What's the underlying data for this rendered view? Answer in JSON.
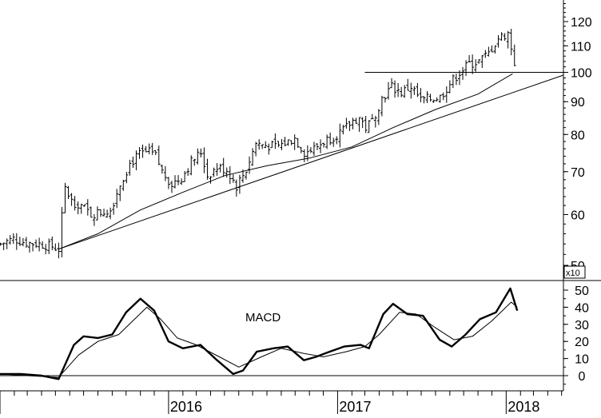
{
  "chart_data": [
    {
      "type": "ohlc",
      "title": "",
      "scale": "log",
      "ylim": [
        47,
        132
      ],
      "y_ticks": [
        "50",
        "60",
        "70",
        "80",
        "90",
        "100",
        "110",
        "120"
      ],
      "y_tick_values": [
        50,
        60,
        70,
        80,
        90,
        100,
        110,
        120
      ],
      "x_ticks": [
        "2016",
        "2017",
        "2018"
      ],
      "xlim": [
        "2015-01-01",
        "2018-05-05"
      ],
      "x_tick_dates": [
        "2016-01-01",
        "2017-01-01",
        "2018-01-01"
      ],
      "weekly_close": [
        [
          "2015-01-02",
          54
        ],
        [
          "2015-01-30",
          55
        ],
        [
          "2015-02-27",
          54.2
        ],
        [
          "2015-03-27",
          54
        ],
        [
          "2015-04-24",
          53.5
        ],
        [
          "2015-05-08",
          53
        ],
        [
          "2015-05-22",
          66
        ],
        [
          "2015-06-05",
          63
        ],
        [
          "2015-06-26",
          62
        ],
        [
          "2015-07-17",
          60
        ],
        [
          "2015-08-07",
          60.5
        ],
        [
          "2015-08-28",
          61
        ],
        [
          "2015-09-18",
          67
        ],
        [
          "2015-10-09",
          72
        ],
        [
          "2015-10-30",
          74.5
        ],
        [
          "2015-11-20",
          75
        ],
        [
          "2015-12-04",
          74
        ],
        [
          "2015-12-18",
          70
        ],
        [
          "2016-01-08",
          67
        ],
        [
          "2016-01-29",
          68.5
        ],
        [
          "2016-02-19",
          72.5
        ],
        [
          "2016-03-11",
          75
        ],
        [
          "2016-03-25",
          69
        ],
        [
          "2016-04-15",
          71
        ],
        [
          "2016-05-06",
          70.5
        ],
        [
          "2016-05-27",
          66.5
        ],
        [
          "2016-06-17",
          70.5
        ],
        [
          "2016-07-08",
          77.5
        ],
        [
          "2016-07-29",
          77
        ],
        [
          "2016-08-19",
          76.5
        ],
        [
          "2016-09-09",
          77.5
        ],
        [
          "2016-09-30",
          79
        ],
        [
          "2016-10-21",
          75
        ],
        [
          "2016-11-11",
          76
        ],
        [
          "2016-12-02",
          78
        ],
        [
          "2016-12-23",
          79.5
        ],
        [
          "2017-01-13",
          81
        ],
        [
          "2017-02-03",
          84
        ],
        [
          "2017-02-17",
          85
        ],
        [
          "2017-03-03",
          82
        ],
        [
          "2017-03-17",
          84
        ],
        [
          "2017-04-07",
          91
        ],
        [
          "2017-04-28",
          95
        ],
        [
          "2017-05-19",
          93
        ],
        [
          "2017-06-09",
          95
        ],
        [
          "2017-06-30",
          90.5
        ],
        [
          "2017-07-21",
          91
        ],
        [
          "2017-08-11",
          91.5
        ],
        [
          "2017-09-01",
          96
        ],
        [
          "2017-09-22",
          100
        ],
        [
          "2017-10-13",
          103
        ],
        [
          "2017-11-03",
          104
        ],
        [
          "2017-11-24",
          107
        ],
        [
          "2017-12-15",
          113
        ],
        [
          "2018-01-05",
          115
        ],
        [
          "2018-01-19",
          103.5
        ]
      ],
      "lines": [
        {
          "label": "horizontal resistance",
          "points": [
            [
              "2017-03-01",
              100
            ],
            [
              "2018-05-05",
              100
            ]
          ]
        },
        {
          "label": "rising trendline",
          "points": [
            [
              "2015-05-08",
              53
            ],
            [
              "2018-05-05",
              99
            ]
          ]
        },
        {
          "label": "moving average",
          "points": [
            [
              "2015-05-08",
              53
            ],
            [
              "2015-08-01",
              56
            ],
            [
              "2015-11-01",
              61
            ],
            [
              "2016-02-01",
              65
            ],
            [
              "2016-05-01",
              69
            ],
            [
              "2016-08-01",
              71.5
            ],
            [
              "2016-11-01",
              73.5
            ],
            [
              "2017-02-01",
              76.5
            ],
            [
              "2017-05-01",
              82
            ],
            [
              "2017-08-01",
              87.5
            ],
            [
              "2017-11-01",
              92.5
            ],
            [
              "2018-01-15",
              99.5
            ]
          ]
        }
      ]
    },
    {
      "type": "line",
      "label": "MACD",
      "multiplier_label": "x10",
      "ylim": [
        -5,
        55
      ],
      "y_ticks": [
        "0",
        "10",
        "20",
        "30",
        "40",
        "50"
      ],
      "y_tick_values": [
        0,
        10,
        20,
        30,
        40,
        50
      ],
      "zero_line": true,
      "series": [
        {
          "points": [
            [
              "2015-01-01",
              1
            ],
            [
              "2015-02-15",
              1
            ],
            [
              "2015-04-01",
              0
            ],
            [
              "2015-05-08",
              -2
            ],
            [
              "2015-06-10",
              18
            ],
            [
              "2015-07-01",
              23
            ],
            [
              "2015-08-01",
              22
            ],
            [
              "2015-09-01",
              24
            ],
            [
              "2015-10-01",
              37
            ],
            [
              "2015-11-01",
              45
            ],
            [
              "2015-12-01",
              38
            ],
            [
              "2016-01-01",
              20
            ],
            [
              "2016-02-01",
              16
            ],
            [
              "2016-03-10",
              18
            ],
            [
              "2016-04-15",
              9
            ],
            [
              "2016-05-20",
              1
            ],
            [
              "2016-06-10",
              3
            ],
            [
              "2016-07-10",
              14
            ],
            [
              "2016-08-15",
              16
            ],
            [
              "2016-09-15",
              17
            ],
            [
              "2016-10-20",
              9
            ],
            [
              "2016-11-15",
              11
            ],
            [
              "2016-12-15",
              14
            ],
            [
              "2017-01-15",
              17
            ],
            [
              "2017-02-20",
              18
            ],
            [
              "2017-03-10",
              16
            ],
            [
              "2017-04-10",
              36
            ],
            [
              "2017-05-01",
              42
            ],
            [
              "2017-06-01",
              36
            ],
            [
              "2017-07-05",
              35
            ],
            [
              "2017-08-10",
              21
            ],
            [
              "2017-09-05",
              17
            ],
            [
              "2017-10-05",
              24
            ],
            [
              "2017-11-05",
              33
            ],
            [
              "2017-12-10",
              37
            ],
            [
              "2018-01-10",
              51
            ],
            [
              "2018-01-25",
              38
            ]
          ]
        },
        {
          "points": [
            [
              "2015-01-01",
              1
            ],
            [
              "2015-03-01",
              0
            ],
            [
              "2015-05-08",
              -1
            ],
            [
              "2015-06-20",
              12
            ],
            [
              "2015-08-01",
              20
            ],
            [
              "2015-09-15",
              24
            ],
            [
              "2015-11-15",
              40
            ],
            [
              "2015-12-15",
              33
            ],
            [
              "2016-01-20",
              22
            ],
            [
              "2016-03-01",
              18
            ],
            [
              "2016-04-20",
              11
            ],
            [
              "2016-06-01",
              5
            ],
            [
              "2016-07-20",
              11
            ],
            [
              "2016-09-01",
              16
            ],
            [
              "2016-10-20",
              13
            ],
            [
              "2016-12-01",
              11
            ],
            [
              "2017-01-20",
              14
            ],
            [
              "2017-03-01",
              17
            ],
            [
              "2017-04-01",
              24
            ],
            [
              "2017-05-15",
              37
            ],
            [
              "2017-06-20",
              36
            ],
            [
              "2017-08-01",
              28
            ],
            [
              "2017-09-10",
              21
            ],
            [
              "2017-10-20",
              23
            ],
            [
              "2017-12-01",
              32
            ],
            [
              "2018-01-12",
              43
            ],
            [
              "2018-01-25",
              40
            ]
          ]
        }
      ]
    }
  ]
}
